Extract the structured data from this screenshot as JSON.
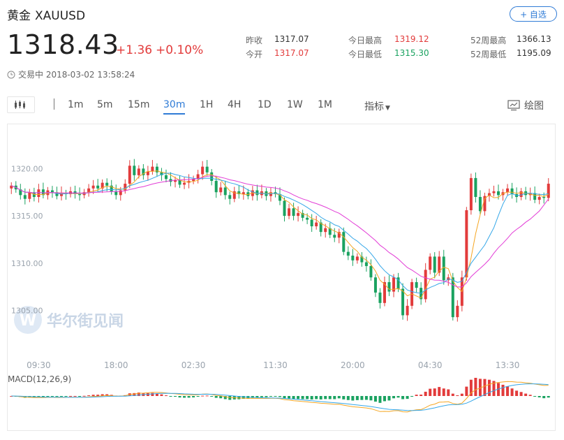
{
  "header": {
    "name": "黄金",
    "symbol": "XAUUSD",
    "follow_label": "+ 自选"
  },
  "quote": {
    "price": "1318.43",
    "change": "+1.36",
    "change_pct": "+0.10%",
    "stats": [
      {
        "label": "昨收",
        "value": "1317.07",
        "tone": "neutral"
      },
      {
        "label": "今开",
        "value": "1317.07",
        "tone": "up"
      },
      {
        "label": "今日最高",
        "value": "1319.12",
        "tone": "up"
      },
      {
        "label": "今日最低",
        "value": "1315.30",
        "tone": "down"
      },
      {
        "label": "52周最高",
        "value": "1366.13",
        "tone": "neutral"
      },
      {
        "label": "52周最低",
        "value": "1195.09",
        "tone": "neutral"
      }
    ],
    "status": "交易中 2018-03-02 13:58:24"
  },
  "toolbar": {
    "periods": [
      "1m",
      "5m",
      "15m",
      "30m",
      "1H",
      "4H",
      "1D",
      "1W",
      "1M"
    ],
    "active_period": "30m",
    "indicator_label": "指标",
    "draw_label": "绘图"
  },
  "watermark": "华尔街见闻",
  "colors": {
    "up": "#e23b3b",
    "down": "#1aa260",
    "accent": "#2f7bd6",
    "ma_fast": "#f5a623",
    "ma_mid": "#35a7e8",
    "ma_slow": "#e23cd6"
  },
  "chart_data": {
    "type": "candlestick",
    "y_ticks": [
      "1320.00",
      "1315.00",
      "1310.00",
      "1305.00"
    ],
    "y_tick_values": [
      1320,
      1315,
      1310,
      1305
    ],
    "ylim": [
      1301.8,
      1323.2
    ],
    "x_ticks": [
      "09:30",
      "18:00",
      "02:30",
      "11:30",
      "20:00",
      "04:30",
      "13:30"
    ],
    "x_tick_index": [
      6,
      23,
      40,
      58,
      75,
      92,
      109
    ],
    "closes": [
      1318.2,
      1317.8,
      1317.2,
      1316.8,
      1317.5,
      1317.0,
      1317.8,
      1317.2,
      1317.7,
      1317.5,
      1317.1,
      1317.4,
      1317.3,
      1317.6,
      1317.3,
      1317.2,
      1317.5,
      1317.9,
      1318.2,
      1317.9,
      1318.5,
      1318.2,
      1317.6,
      1317.2,
      1317.7,
      1318.4,
      1320.3,
      1319.3,
      1320.0,
      1319.3,
      1319.7,
      1320.2,
      1319.6,
      1319.3,
      1318.9,
      1318.6,
      1318.8,
      1318.3,
      1318.5,
      1318.7,
      1318.9,
      1319.4,
      1320.2,
      1319.6,
      1318.7,
      1317.5,
      1318.0,
      1317.2,
      1316.8,
      1317.6,
      1317.3,
      1317.5,
      1317.1,
      1317.7,
      1317.2,
      1317.6,
      1317.1,
      1317.5,
      1317.3,
      1316.6,
      1315.0,
      1315.8,
      1315.0,
      1315.3,
      1314.8,
      1314.6,
      1313.9,
      1314.3,
      1313.3,
      1313.7,
      1313.0,
      1312.7,
      1313.3,
      1311.2,
      1310.8,
      1310.3,
      1310.7,
      1310.1,
      1309.7,
      1308.5,
      1306.9,
      1305.8,
      1308.0,
      1307.0,
      1308.5,
      1307.3,
      1304.5,
      1305.5,
      1308.0,
      1307.4,
      1306.2,
      1309.3,
      1310.7,
      1309.0,
      1310.7,
      1308.2,
      1308.5,
      1304.3,
      1305.5,
      1308.5,
      1315.6,
      1319.0,
      1317.0,
      1315.5,
      1317.1,
      1317.4,
      1317.6,
      1317.2,
      1317.5,
      1317.9,
      1317.3,
      1317.0,
      1317.6,
      1317.2,
      1317.4,
      1316.7,
      1317.0,
      1316.9,
      1318.4
    ],
    "macd_label": "MACD(12,26,9)",
    "legend_items": []
  }
}
